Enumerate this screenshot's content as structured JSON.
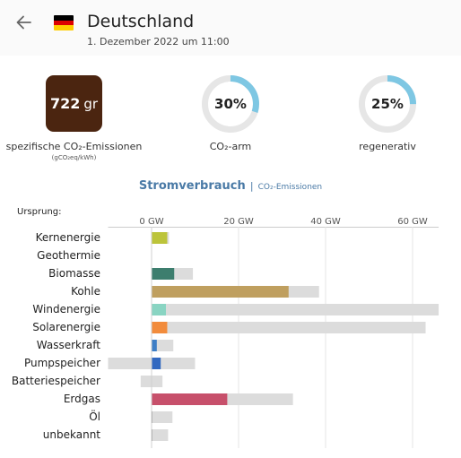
{
  "header": {
    "title": "Deutschland",
    "subtitle": "1. Dezember 2022 um 11:00",
    "back_icon": "arrow-left-icon",
    "flag_icon": "germany-flag-icon",
    "flag_colors": [
      "#000000",
      "#dd0000",
      "#ffce00"
    ]
  },
  "summary": {
    "co2": {
      "value": "722",
      "unit": "gr",
      "label": "spezifische CO₂-Emissionen",
      "sublabel": "(gCO₂eq/kWh)",
      "color": "#4b2510"
    },
    "low_carbon": {
      "value": "30%",
      "fraction": 0.3,
      "label": "CO₂-arm"
    },
    "renewable": {
      "value": "25%",
      "fraction": 0.25,
      "label": "regenerativ"
    },
    "gauge_colors": {
      "track": "#e6e6e6",
      "fill": "#7ec7e3"
    }
  },
  "chart_tabs": {
    "active": "Stromverbrauch",
    "separator": "|",
    "inactive": "CO₂-Emissionen"
  },
  "origin_label": "Ursprung:",
  "chart_data": {
    "type": "bar",
    "orientation": "horizontal",
    "xlim": [
      -10,
      66
    ],
    "tick_values": [
      0,
      20,
      40,
      60
    ],
    "tick_labels": [
      "0 GW",
      "20 GW",
      "40 GW",
      "60 GW"
    ],
    "grid": true,
    "categories": [
      "Kernenergie",
      "Geothermie",
      "Biomasse",
      "Kohle",
      "Windenergie",
      "Solarenergie",
      "Wasserkraft",
      "Pumpspeicher",
      "Batteriespeicher",
      "Erdgas",
      "Öl",
      "unbekannt"
    ],
    "series": [
      {
        "values": [
          3.6,
          0,
          5.2,
          31.5,
          3.3,
          3.6,
          1.2,
          2.1,
          0,
          17.4,
          0.2,
          0.2
        ],
        "colors": [
          "#bcc43a",
          "#cccccc",
          "#3d7e6e",
          "#bf9f5f",
          "#89d4c2",
          "#f28c3c",
          "#3d7ec6",
          "#3168c0",
          "#cccccc",
          "#c7506b",
          "#999999",
          "#999999"
        ]
      },
      {
        "ranges": [
          [
            0,
            4
          ],
          [
            0,
            0
          ],
          [
            0,
            9.5
          ],
          [
            0,
            38.5
          ],
          [
            0,
            66
          ],
          [
            0,
            63
          ],
          [
            0,
            5
          ],
          [
            -10,
            10
          ],
          [
            -2.5,
            2.5
          ],
          [
            0,
            32.5
          ],
          [
            0,
            4.8
          ],
          [
            0,
            3.8
          ]
        ],
        "color": "#dcdcdc"
      }
    ]
  }
}
